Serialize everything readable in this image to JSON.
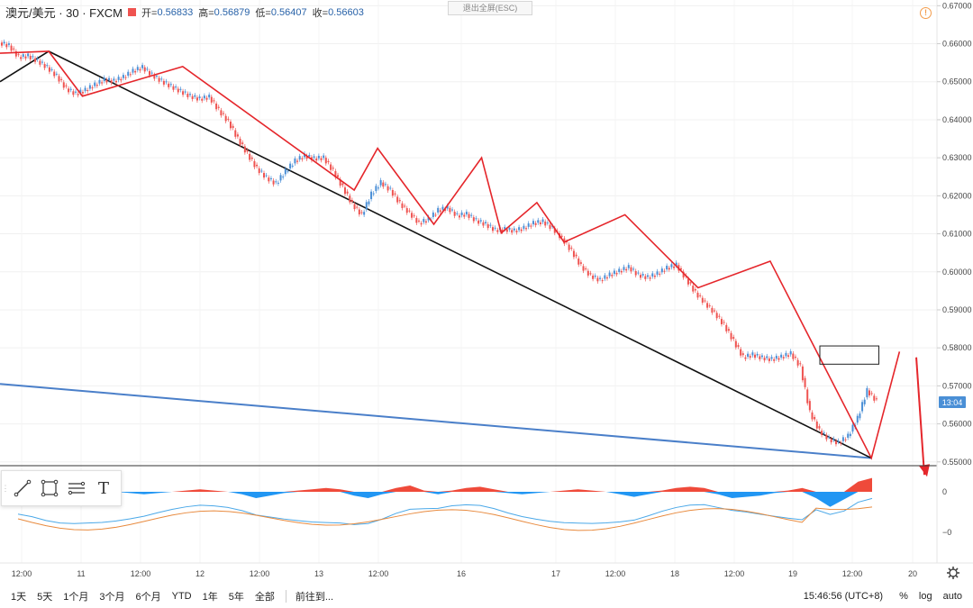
{
  "header": {
    "symbol": "澳元/美元 · 30 · FXCM",
    "open_label": "开=",
    "open_value": "0.56833",
    "high_label": "高=",
    "high_value": "0.56879",
    "low_label": "低=",
    "low_value": "0.56407",
    "close_label": "收=",
    "close_value": "0.56603"
  },
  "exit_fullscreen": "退出全屏(ESC)",
  "warning_icon": "!",
  "price_axis": {
    "ticks": [
      "0.67000",
      "0.66000",
      "0.65000",
      "0.64000",
      "0.63000",
      "0.62000",
      "0.61000",
      "0.60000",
      "0.59000",
      "0.58000",
      "0.57000",
      "0.56000",
      "0.55000"
    ],
    "ticks_values": [
      0.67,
      0.66,
      0.65,
      0.64,
      0.63,
      0.62,
      0.61,
      0.6,
      0.59,
      0.58,
      0.57,
      0.56,
      0.55
    ],
    "current_badge": "13:04",
    "badge_color": "#4a8fd6"
  },
  "indicator_axis": {
    "ticks": [
      "0",
      "−0"
    ],
    "ticks_values": [
      0,
      -0.005
    ]
  },
  "time_axis": {
    "labels": [
      "12:00",
      "11",
      "12:00",
      "12",
      "12:00",
      "13",
      "12:00",
      "16",
      "17",
      "12:00",
      "18",
      "12:00",
      "19",
      "12:00",
      "20"
    ]
  },
  "colors": {
    "up": "#4a8fd6",
    "down": "#ef5350",
    "zigzag": "#e5262b",
    "black_trend": "#111111",
    "blue_trend": "#4a7fc9",
    "hist_pos": "#ef4a3a",
    "hist_neg": "#2196f3",
    "macd_line": "#4aa8e8",
    "signal_line": "#e88a3e"
  },
  "toolbar_icons": [
    "trend-line-icon",
    "rectangle-icon",
    "fib-icon",
    "text-icon"
  ],
  "toolbar_text_glyph": "T",
  "settings_icon": "gear-icon",
  "bottom_bar": {
    "periods": [
      "1天",
      "5天",
      "1个月",
      "3个月",
      "6个月",
      "YTD",
      "1年",
      "5年",
      "全部"
    ],
    "goto": "前往到...",
    "clock": "15:46:56 (UTC+8)",
    "percent": "%",
    "log": "log",
    "auto": "auto"
  },
  "chart_data": {
    "type": "candlestick",
    "series_values": [
      0.6595,
      0.6565,
      0.6568,
      0.6555,
      0.6538,
      0.6515,
      0.6482,
      0.6468,
      0.6478,
      0.6492,
      0.6505,
      0.6502,
      0.6512,
      0.6528,
      0.6538,
      0.6518,
      0.6502,
      0.6488,
      0.6475,
      0.6462,
      0.6455,
      0.646,
      0.6425,
      0.6395,
      0.635,
      0.631,
      0.6272,
      0.6248,
      0.6232,
      0.6265,
      0.6292,
      0.6305,
      0.6298,
      0.63,
      0.6265,
      0.6222,
      0.6178,
      0.615,
      0.6205,
      0.6235,
      0.6215,
      0.618,
      0.6155,
      0.6128,
      0.6138,
      0.6162,
      0.6168,
      0.6148,
      0.6152,
      0.6135,
      0.6125,
      0.611,
      0.6112,
      0.6108,
      0.6115,
      0.6128,
      0.6132,
      0.6115,
      0.6088,
      0.6055,
      0.6015,
      0.599,
      0.5978,
      0.5992,
      0.6002,
      0.6012,
      0.5992,
      0.5985,
      0.5995,
      0.601,
      0.6018,
      0.5982,
      0.5945,
      0.5918,
      0.5892,
      0.586,
      0.5818,
      0.5775,
      0.5782,
      0.5774,
      0.577,
      0.5776,
      0.5785,
      0.5751,
      0.563,
      0.5582,
      0.556,
      0.555,
      0.5568,
      0.5615,
      0.5688,
      0.566
    ],
    "range": [
      0.549,
      0.6715
    ],
    "candle_body_direction_by_index_parity": true,
    "zigzag_points": [
      [
        0.0,
        0.6575
      ],
      [
        0.052,
        0.658
      ],
      [
        0.088,
        0.6462
      ],
      [
        0.195,
        0.654
      ],
      [
        0.378,
        0.6215
      ],
      [
        0.403,
        0.6325
      ],
      [
        0.463,
        0.6125
      ],
      [
        0.514,
        0.63
      ],
      [
        0.535,
        0.6102
      ],
      [
        0.573,
        0.6182
      ],
      [
        0.602,
        0.6078
      ],
      [
        0.667,
        0.615
      ],
      [
        0.745,
        0.5958
      ],
      [
        0.822,
        0.6028
      ],
      [
        0.93,
        0.551
      ],
      [
        0.96,
        0.579
      ]
    ],
    "black_trendline": [
      [
        0.0,
        0.65
      ],
      [
        0.052,
        0.658
      ],
      [
        0.93,
        0.551
      ]
    ],
    "blue_trendline": [
      [
        0.0,
        0.5705
      ],
      [
        0.93,
        0.551
      ]
    ],
    "consolidation_box": {
      "from": 0.875,
      "to": 0.938,
      "top": 0.5805,
      "bottom": 0.5757
    },
    "projected_arrow": [
      [
        0.976,
        0.5775
      ],
      [
        1.0,
        0.548
      ]
    ],
    "macd_histogram": [
      0.2,
      0.3,
      0.1,
      0.0,
      0.1,
      0.2,
      0.1,
      0.0,
      -0.1,
      -0.2,
      -0.1,
      0.0,
      0.1,
      0.2,
      0.1,
      0.0,
      -0.2,
      -0.5,
      -0.3,
      -0.1,
      0.1,
      0.2,
      0.3,
      0.2,
      -0.3,
      -0.5,
      -0.2,
      0.3,
      0.5,
      0.1,
      -0.2,
      0.1,
      0.3,
      0.4,
      0.2,
      -0.1,
      -0.2,
      -0.1,
      0.0,
      0.1,
      0.2,
      0.1,
      0.0,
      -0.2,
      -0.4,
      -0.2,
      0.1,
      0.3,
      0.4,
      0.3,
      -0.2,
      -0.5,
      -0.4,
      -0.3,
      -0.1,
      0.1,
      0.3,
      -0.5,
      -1.2,
      -0.6,
      0.8,
      1.1
    ]
  }
}
